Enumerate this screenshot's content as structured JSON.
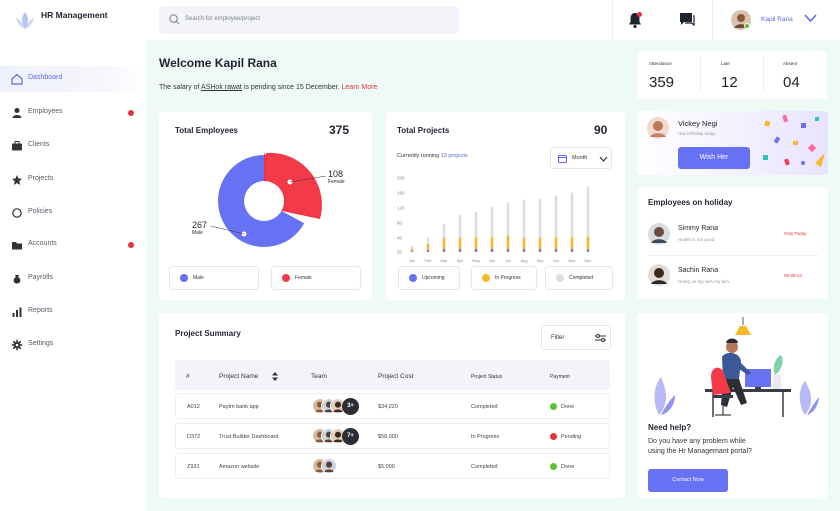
{
  "app": {
    "title": "HR Management"
  },
  "sidebar": {
    "items": [
      {
        "label": "Dashboard",
        "icon": "home-icon",
        "active": true,
        "dot": false
      },
      {
        "label": "Employees",
        "icon": "person-icon",
        "dot": true
      },
      {
        "label": "Clients",
        "icon": "briefcase-icon",
        "dot": false
      },
      {
        "label": "Projects",
        "icon": "star-icon",
        "dot": false
      },
      {
        "label": "Policies",
        "icon": "circle-icon",
        "dot": false
      },
      {
        "label": "Accounts",
        "icon": "folder-icon",
        "dot": true
      },
      {
        "label": "Payrolls",
        "icon": "money-bag-icon",
        "dot": false
      },
      {
        "label": "Reports",
        "icon": "bar-chart-icon",
        "dot": false
      },
      {
        "label": "Settings",
        "icon": "gear-icon",
        "dot": false
      }
    ]
  },
  "header": {
    "search_placeholder": "Search for employee/project",
    "user_name": "Kapil Rana"
  },
  "welcome": {
    "title": "Welcome Kapil Rana",
    "msg_prefix": "The salary of ",
    "msg_person": "ASHok rawat",
    "msg_suffix": " is pending since 15 December. ",
    "learn_more": "Learn More"
  },
  "stats": {
    "attendance_label": "Attendance",
    "attendance": "359",
    "late_label": "Late",
    "late": "12",
    "absent_label": "Absent",
    "absent": "04"
  },
  "total_employees": {
    "title": "Total Employees",
    "count": "375",
    "male_label": "Male",
    "female_label": "Female",
    "male_value": "267",
    "female_value": "108"
  },
  "total_projects": {
    "title": "Total Projects",
    "count": "90",
    "running_prefix": "Currently running ",
    "running_link": "13 projects",
    "period": "Month",
    "legend": {
      "upcoming": "Upcoming",
      "in_progress": "In Progress",
      "completed": "Completed"
    }
  },
  "chart_data": {
    "type": "bar",
    "categories": [
      "Jan",
      "Feb",
      "Mar",
      "Apr",
      "May",
      "Jun",
      "Jul",
      "Aug",
      "Sep",
      "Oct",
      "Nov",
      "Dec"
    ],
    "yticks": [
      "200",
      "160",
      "120",
      "80",
      "40",
      "20"
    ],
    "ylim": [
      20,
      200
    ],
    "series": [
      {
        "name": "Upcoming",
        "values": [
          22,
          25,
          27,
          27,
          28,
          28,
          27,
          27,
          27,
          27,
          27,
          26
        ]
      },
      {
        "name": "In Progress",
        "values": [
          28,
          40,
          55,
          56,
          57,
          57,
          60,
          55,
          56,
          57,
          57,
          58
        ]
      },
      {
        "name": "Completed",
        "values": [
          35,
          55,
          88,
          110,
          118,
          130,
          140,
          148,
          150,
          158,
          165,
          178
        ]
      }
    ]
  },
  "birthday": {
    "name": "Vickey Negi",
    "sub": "Has birthday today",
    "button": "Wish Her"
  },
  "holiday": {
    "title": "Employees on holiday",
    "people": [
      {
        "name": "Simmy Rana",
        "sub": "Health is not good.",
        "when": "Only Today"
      },
      {
        "name": "Sachin Rana",
        "sub": "Going on trip with my fam.",
        "when": "06-08-22"
      }
    ]
  },
  "summary": {
    "title": "Project Summary",
    "filter": "Filter",
    "headers": {
      "num": "#",
      "name": "Project Name",
      "team": "Team",
      "cost": "Project Cost",
      "status": "Project Status",
      "payment": "Payment"
    },
    "rows": [
      {
        "id": "A012",
        "name": "Paytm bank app",
        "more": "3+",
        "cost": "$34,220",
        "status": "Completed",
        "payment": "Done",
        "pay_color": "#59c332"
      },
      {
        "id": "D372",
        "name": "Trust Builder Dashboard",
        "more": "7+",
        "cost": "$58,000",
        "status": "In Progress",
        "payment": "Pending",
        "pay_color": "#e6343c"
      },
      {
        "id": "Z931",
        "name": "Amazon website",
        "more": "",
        "cost": "$5,000",
        "status": "Completed",
        "payment": "Done",
        "pay_color": "#59c332"
      }
    ]
  },
  "help": {
    "title": "Need help?",
    "text1": "Do you have any problem while",
    "text2": "using the Hr Managemant portal?",
    "button": "Contact Now"
  }
}
